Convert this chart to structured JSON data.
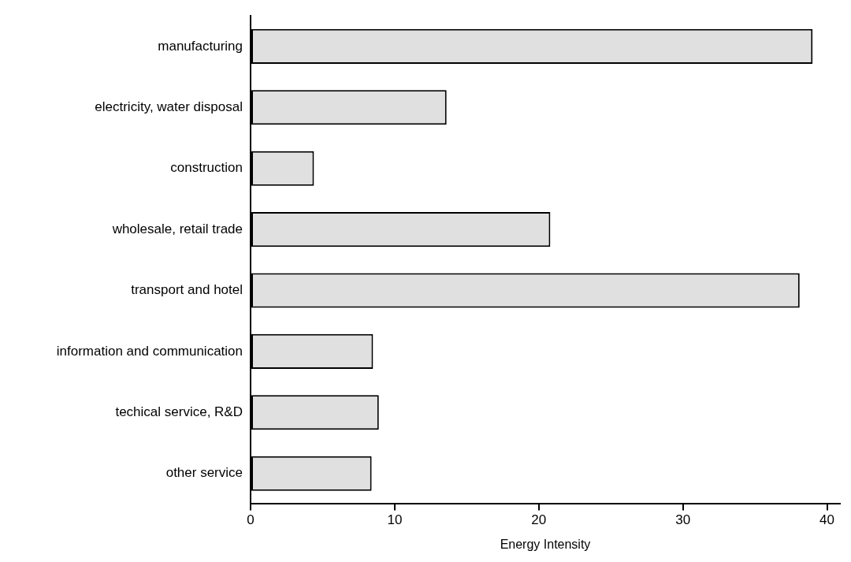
{
  "chart_data": {
    "type": "bar",
    "orientation": "horizontal",
    "xlabel": "Energy Intensity",
    "categories": [
      "manufacturing",
      "electricity, water disposal",
      "construction",
      "wholesale, retail trade",
      "transport and hotel",
      "information and communication",
      "techical service, R&D",
      "other service"
    ],
    "values": [
      39.0,
      13.6,
      4.4,
      20.8,
      38.1,
      8.5,
      8.9,
      8.4
    ],
    "color": "#e0e0e0",
    "xlim": [
      0,
      40.9
    ],
    "xticks": [
      0,
      10,
      20,
      30,
      40
    ],
    "grid": false,
    "legend": false
  }
}
